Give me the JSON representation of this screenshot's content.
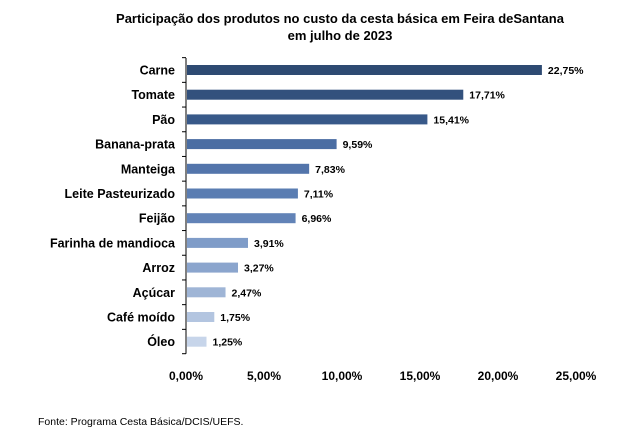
{
  "chart_data": {
    "type": "bar",
    "orientation": "horizontal",
    "title_line1": "Participação dos produtos no custo da cesta básica em Feira deSantana",
    "title_line2": "em julho de 2023",
    "categories": [
      "Carne",
      "Tomate",
      "Pão",
      "Banana-prata",
      "Manteiga",
      "Leite Pasteurizado",
      "Feijão",
      "Farinha de mandioca",
      "Arroz",
      "Açúcar",
      "Café moído",
      "Óleo"
    ],
    "values": [
      22.75,
      17.71,
      15.41,
      9.59,
      7.83,
      7.11,
      6.96,
      3.91,
      3.27,
      2.47,
      1.75,
      1.25
    ],
    "value_labels": [
      "22,75%",
      "17,71%",
      "15,41%",
      "9,59%",
      "7,83%",
      "7,11%",
      "6,96%",
      "3,91%",
      "3,27%",
      "2,47%",
      "1,75%",
      "1,25%"
    ],
    "bar_colors": [
      "#2e4a72",
      "#33517d",
      "#385989",
      "#4a6da3",
      "#5375ab",
      "#5a7db2",
      "#6283b7",
      "#7f9cc8",
      "#8ba5cd",
      "#9fb5d6",
      "#b3c5e0",
      "#c7d5ea"
    ],
    "xlim": [
      0,
      25
    ],
    "xticks": [
      0,
      5,
      10,
      15,
      20,
      25
    ],
    "xtick_labels": [
      "0,00%",
      "5,00%",
      "10,00%",
      "15,00%",
      "20,00%",
      "25,00%"
    ],
    "grid": false,
    "legend": "none"
  },
  "source": "Fonte: Programa Cesta Básica/DCIS/UEFS."
}
